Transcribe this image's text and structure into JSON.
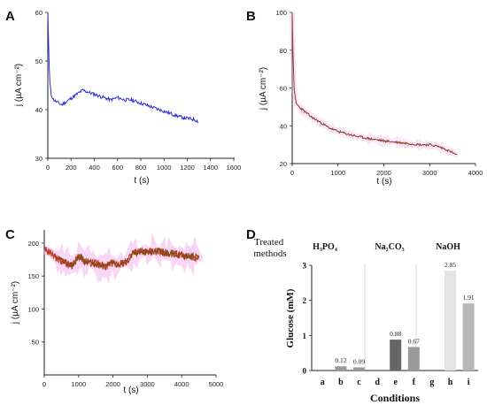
{
  "panel_labels": [
    "A",
    "B",
    "C",
    "D"
  ],
  "colors": {
    "a_line": "#2b2bd6",
    "b_line": "#8a3d1c",
    "c_line": "#8a4a1a",
    "c_line2": "#d03020",
    "pink_noise": "#f2b4ec",
    "d_bar_dark": "#666666",
    "d_bar_mid": "#9a9a9a",
    "d_bar_light": "#e4e4e4",
    "d_bar_light2": "#b8b8b8",
    "axis": "#222222"
  },
  "chart_data": [
    {
      "type": "line",
      "panel": "A",
      "xlabel": "t (s)",
      "ylabel": "j (µA cm⁻²)",
      "xlim": [
        0,
        1600
      ],
      "ylim": [
        30,
        60
      ],
      "x_ticks": [
        "0",
        "200",
        "400",
        "600",
        "800",
        "1000",
        "1200",
        "1400",
        "1600"
      ],
      "y_ticks": [
        "30",
        "40",
        "50",
        "60"
      ],
      "series": [
        {
          "x": [
            0,
            5,
            15,
            30,
            50,
            80,
            120,
            180,
            240,
            300,
            360,
            420,
            480,
            540,
            600,
            660,
            720,
            780,
            840,
            900,
            960,
            1020,
            1080,
            1140,
            1200,
            1260,
            1300
          ],
          "y": [
            60,
            55,
            46,
            43,
            42,
            41.5,
            41,
            42,
            43,
            44,
            43.5,
            43,
            42.5,
            42,
            42.5,
            42,
            42,
            41.5,
            41,
            40.5,
            40,
            39.5,
            39,
            38.5,
            38.2,
            38,
            37.5
          ]
        }
      ]
    },
    {
      "type": "line",
      "panel": "B",
      "xlabel": "t (s)",
      "ylabel": "j (µA cm⁻²)",
      "xlim": [
        0,
        4000
      ],
      "ylim": [
        20,
        100
      ],
      "x_ticks": [
        "0",
        "1000",
        "2000",
        "3000",
        "4000"
      ],
      "y_ticks": [
        "20",
        "40",
        "60",
        "80",
        "100"
      ],
      "series": [
        {
          "x": [
            0,
            15,
            40,
            80,
            150,
            250,
            400,
            600,
            800,
            1000,
            1300,
            1600,
            2000,
            2400,
            2800,
            3000,
            3200,
            3400,
            3600
          ],
          "y": [
            100,
            80,
            60,
            52,
            50,
            48,
            45,
            42,
            39,
            37,
            35,
            33.5,
            32,
            31,
            30,
            30,
            29,
            27,
            24.5
          ]
        }
      ]
    },
    {
      "type": "line",
      "panel": "C",
      "xlabel": "t (s)",
      "ylabel": "j (µA cm⁻²)",
      "xlim": [
        0,
        5000
      ],
      "ylim": [
        0,
        220
      ],
      "x_ticks": [
        "0",
        "1000",
        "2000",
        "3000",
        "4000",
        "5000"
      ],
      "y_ticks": [
        "50",
        "100",
        "150",
        "200"
      ],
      "series": [
        {
          "x": [
            0,
            200,
            400,
            600,
            800,
            1000,
            1200,
            1400,
            1600,
            1800,
            2000,
            2200,
            2400,
            2600,
            2800,
            3000,
            3200,
            3400,
            3600,
            3800,
            4000,
            4200,
            4400,
            4500
          ],
          "y": [
            190,
            185,
            175,
            170,
            165,
            180,
            172,
            170,
            168,
            165,
            170,
            168,
            172,
            185,
            188,
            186,
            188,
            186,
            185,
            184,
            182,
            180,
            178,
            176
          ]
        }
      ]
    },
    {
      "type": "bar",
      "panel": "D",
      "title": "Treated methods",
      "groups": [
        "H₃PO₄",
        "Na₂CO₃",
        "NaOH"
      ],
      "categories": [
        "a",
        "b",
        "c",
        "d",
        "e",
        "f",
        "g",
        "h",
        "i"
      ],
      "values": [
        0,
        0.12,
        0.09,
        0,
        0.88,
        0.67,
        0,
        2.85,
        1.91
      ],
      "data_labels": [
        "",
        "0.12",
        "0.09",
        "",
        "0.88",
        "0.67",
        "",
        "2.85",
        "1.91"
      ],
      "xlabel": "Conditions",
      "ylabel": "Glucose (mM)",
      "ylim": [
        0,
        3
      ],
      "y_ticks": [
        "0",
        "1",
        "2",
        "3"
      ]
    }
  ]
}
